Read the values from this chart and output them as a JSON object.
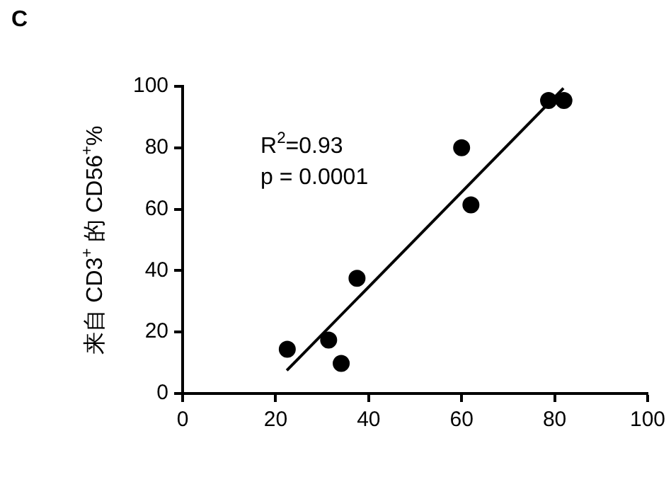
{
  "chart_data": {
    "type": "scatter",
    "title": "C",
    "ylabel": "来自 CD3$^{+}$ 的 CD56$^{+}$%",
    "series": [
      {
        "color": "#000000",
        "marker": "circle",
        "x": [
          22.5,
          31.4,
          34.1,
          37.5,
          60,
          62,
          78.7,
          82
        ],
        "values": [
          14.4,
          17.4,
          9.8,
          37.5,
          80,
          61.4,
          95.4,
          95.4
        ]
      },
      {
        "type": "line",
        "color": "#000000",
        "marker": "none",
        "line_style": "solid",
        "x": [
          22.4,
          81.9
        ],
        "values": [
          7.5,
          99.4
        ]
      }
    ],
    "annotations": [
      "R$^{2}$=0.93",
      "p = 0.0001"
    ],
    "xlim": [
      0,
      100
    ],
    "xticks": [
      0,
      20,
      40,
      60,
      80,
      100
    ],
    "ylim": [
      0,
      100
    ],
    "yticks": [
      0,
      20,
      40,
      60,
      80,
      100
    ],
    "grid": false,
    "legend": false
  }
}
